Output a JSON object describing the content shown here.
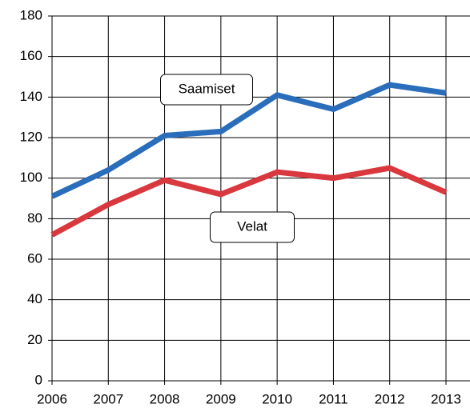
{
  "chart_data": {
    "type": "line",
    "x": [
      2006,
      2007,
      2008,
      2009,
      2010,
      2011,
      2012,
      2013
    ],
    "series": [
      {
        "name": "Saamiset",
        "color": "#2a6ebb",
        "values": [
          91,
          104,
          121,
          123,
          141,
          134,
          146,
          142
        ]
      },
      {
        "name": "Velat",
        "color": "#d9383e",
        "values": [
          72,
          87,
          99,
          92,
          103,
          100,
          105,
          93
        ]
      }
    ],
    "xlim": [
      2006,
      2013
    ],
    "xticks": [
      2006,
      2007,
      2008,
      2009,
      2010,
      2011,
      2012,
      2013
    ],
    "ylim": [
      0,
      180
    ],
    "yticks": [
      0,
      20,
      40,
      60,
      80,
      100,
      120,
      140,
      160,
      180
    ],
    "grid": true
  }
}
